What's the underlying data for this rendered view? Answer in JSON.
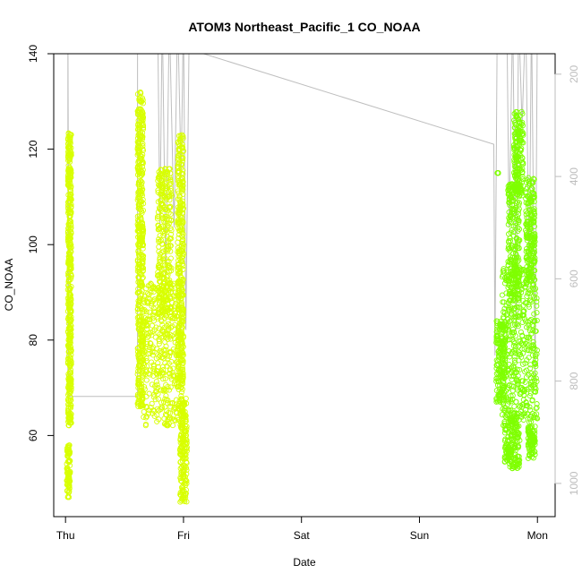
{
  "chart_data": {
    "type": "scatter",
    "title": "ATOM3 Northeast_Pacific_1 CO_NOAA",
    "xlabel": "Date",
    "ylabel": "CO_NOAA",
    "x_ticks": [
      "Thu",
      "Fri",
      "Sat",
      "Sun",
      "Mon"
    ],
    "x_unit": "days since Thu 00:00",
    "xlim": [
      -0.1,
      4.15
    ],
    "y_ticks": [
      60,
      80,
      100,
      120,
      140
    ],
    "ylim": [
      43,
      140
    ],
    "y2_ticks": [
      200,
      400,
      600,
      800,
      1000
    ],
    "y2lim": [
      1065,
      160
    ],
    "y2_reversed": true,
    "grid": false,
    "colors": {
      "flight1": "#d8ff00",
      "flight2": "#7fff00",
      "altitude_line": "#bebebe",
      "axis": "#000000",
      "right_axis": "#bdbdbd"
    },
    "series": [
      {
        "color": "#d8ff00",
        "clusters": [
          {
            "x": [
              0.01,
              0.04
            ],
            "y": [
              47,
              58
            ]
          },
          {
            "x": [
              0.02,
              0.05
            ],
            "y": [
              62,
              82
            ]
          },
          {
            "x": [
              0.02,
              0.05
            ],
            "y": [
              82,
              100
            ]
          },
          {
            "x": [
              0.02,
              0.05
            ],
            "y": [
              100,
              124
            ]
          },
          {
            "x": [
              0.61,
              0.66
            ],
            "y": [
              66,
              105
            ]
          },
          {
            "x": [
              0.61,
              0.66
            ],
            "y": [
              100,
              132
            ]
          },
          {
            "x": [
              0.66,
              1.0
            ],
            "y": [
              62,
              92
            ]
          },
          {
            "x": [
              0.78,
              0.9
            ],
            "y": [
              85,
              116
            ]
          },
          {
            "x": [
              0.95,
              1.0
            ],
            "y": [
              70,
              123
            ]
          },
          {
            "x": [
              0.97,
              1.03
            ],
            "y": [
              46,
              68
            ]
          }
        ]
      },
      {
        "color": "#7fff00",
        "clusters": [
          {
            "x": [
              3.65,
              3.73
            ],
            "y": [
              67,
              84
            ]
          },
          {
            "x": [
              3.7,
              4.0
            ],
            "y": [
              62,
              95
            ]
          },
          {
            "x": [
              3.75,
              3.85
            ],
            "y": [
              88,
              113
            ]
          },
          {
            "x": [
              3.8,
              3.88
            ],
            "y": [
              110,
              128
            ]
          },
          {
            "x": [
              3.72,
              3.85
            ],
            "y": [
              53,
              65
            ]
          },
          {
            "x": [
              3.9,
              3.98
            ],
            "y": [
              92,
              114
            ]
          },
          {
            "x": [
              3.92,
              3.98
            ],
            "y": [
              55,
              62
            ]
          },
          {
            "x": [
              3.66,
              3.67
            ],
            "y": [
              115,
              115
            ]
          }
        ]
      }
    ],
    "altitude_line": {
      "x": [
        0.02,
        0.02,
        0.03,
        0.61,
        0.61,
        0.62,
        0.78,
        0.8,
        0.82,
        0.85,
        0.88,
        0.92,
        0.95,
        0.98,
        1.0,
        1.02,
        1.05,
        1.07,
        1.1,
        3.63,
        3.64,
        3.66,
        3.74,
        3.76,
        3.79,
        3.82,
        3.84,
        3.87,
        3.9,
        3.93,
        3.95,
        3.98,
        4.0
      ],
      "y": [
        830,
        80,
        830,
        830,
        80,
        80,
        80,
        500,
        80,
        600,
        80,
        500,
        80,
        400,
        80,
        700,
        80,
        150,
        155,
        337,
        750,
        80,
        80,
        500,
        80,
        700,
        80,
        300,
        80,
        600,
        80,
        800,
        80
      ]
    }
  }
}
